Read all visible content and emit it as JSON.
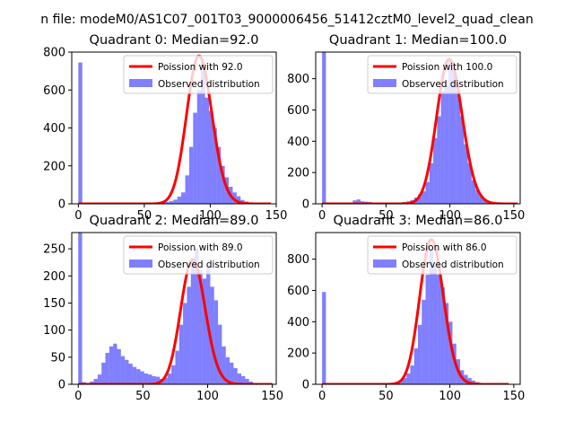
{
  "figure": {
    "suptitle": "n file: modeM0/AS1C07_001T03_9000006456_51412cztM0_level2_quad_clean"
  },
  "colors": {
    "hist_fill": "#0000ff",
    "hist_alpha": 0.5,
    "poisson_line": "#ff0000",
    "axis": "#000000",
    "text": "#000000"
  },
  "chart_data": [
    {
      "type": "bar",
      "title": "Quadrant 0: Median=92.0",
      "legend": [
        "Poission with 92.0",
        "Observed distribution"
      ],
      "legend_position": "top-right",
      "grid": false,
      "xlim": [
        -5,
        150
      ],
      "ylim": [
        0,
        800
      ],
      "xticks": [
        0,
        50,
        100,
        150
      ],
      "xtick_labels": [
        "0",
        "50",
        "100",
        "150"
      ],
      "yticks": [
        0,
        200,
        400,
        600,
        800
      ],
      "ytick_labels": [
        "0",
        "200",
        "400",
        "600",
        "800"
      ],
      "bin_width": 3,
      "bins": [
        [
          0,
          745
        ],
        [
          27,
          6
        ],
        [
          30,
          7
        ],
        [
          33,
          5
        ],
        [
          57,
          5
        ],
        [
          60,
          6
        ],
        [
          63,
          8
        ],
        [
          66,
          10
        ],
        [
          69,
          14
        ],
        [
          72,
          22
        ],
        [
          75,
          38
        ],
        [
          78,
          60
        ],
        [
          81,
          150
        ],
        [
          84,
          300
        ],
        [
          87,
          480
        ],
        [
          90,
          600
        ],
        [
          93,
          740
        ],
        [
          96,
          560
        ],
        [
          99,
          490
        ],
        [
          102,
          400
        ],
        [
          105,
          300
        ],
        [
          108,
          200
        ],
        [
          111,
          140
        ],
        [
          114,
          90
        ],
        [
          117,
          60
        ],
        [
          120,
          40
        ],
        [
          123,
          20
        ],
        [
          126,
          12
        ],
        [
          129,
          6
        ]
      ],
      "poisson_mean": 92.0,
      "poisson_peak": 780,
      "poisson_xrange": [
        0,
        146
      ]
    },
    {
      "type": "bar",
      "title": "Quadrant 1: Median=100.0",
      "legend": [
        "Poission with 100.0",
        "Observed distribution"
      ],
      "legend_position": "top-right",
      "grid": false,
      "xlim": [
        -5,
        155
      ],
      "ylim": [
        0,
        970
      ],
      "xticks": [
        0,
        50,
        100,
        150
      ],
      "xtick_labels": [
        "0",
        "50",
        "100",
        "150"
      ],
      "yticks": [
        0,
        200,
        400,
        600,
        800
      ],
      "ytick_labels": [
        "0",
        "200",
        "400",
        "600",
        "800"
      ],
      "bin_width": 3,
      "bins": [
        [
          0,
          970
        ],
        [
          21,
          8
        ],
        [
          24,
          22
        ],
        [
          27,
          28
        ],
        [
          30,
          16
        ],
        [
          33,
          14
        ],
        [
          36,
          12
        ],
        [
          39,
          8
        ],
        [
          57,
          6
        ],
        [
          60,
          8
        ],
        [
          63,
          12
        ],
        [
          66,
          16
        ],
        [
          69,
          24
        ],
        [
          72,
          40
        ],
        [
          75,
          60
        ],
        [
          78,
          80
        ],
        [
          81,
          140
        ],
        [
          84,
          260
        ],
        [
          87,
          420
        ],
        [
          90,
          560
        ],
        [
          93,
          720
        ],
        [
          96,
          760
        ],
        [
          99,
          920
        ],
        [
          102,
          860
        ],
        [
          105,
          720
        ],
        [
          108,
          560
        ],
        [
          111,
          380
        ],
        [
          114,
          260
        ],
        [
          117,
          150
        ],
        [
          120,
          90
        ],
        [
          123,
          50
        ],
        [
          126,
          30
        ],
        [
          129,
          14
        ],
        [
          132,
          6
        ]
      ],
      "poisson_mean": 100.0,
      "poisson_peak": 925,
      "poisson_xrange": [
        0,
        153
      ]
    },
    {
      "type": "bar",
      "title": "Quadrant 2: Median=89.0",
      "legend": [
        "Poission with 89.0",
        "Observed distribution"
      ],
      "legend_position": "top-right",
      "grid": false,
      "xlim": [
        -5,
        153
      ],
      "ylim": [
        0,
        280
      ],
      "xticks": [
        0,
        50,
        100,
        150
      ],
      "xtick_labels": [
        "0",
        "50",
        "100",
        "150"
      ],
      "yticks": [
        0,
        50,
        100,
        150,
        200,
        250
      ],
      "ytick_labels": [
        "0",
        "50",
        "100",
        "150",
        "200",
        "250"
      ],
      "bin_width": 3,
      "bins": [
        [
          0,
          280
        ],
        [
          3,
          4
        ],
        [
          9,
          5
        ],
        [
          12,
          10
        ],
        [
          15,
          18
        ],
        [
          18,
          40
        ],
        [
          21,
          58
        ],
        [
          24,
          70
        ],
        [
          27,
          75
        ],
        [
          30,
          65
        ],
        [
          33,
          52
        ],
        [
          36,
          45
        ],
        [
          39,
          38
        ],
        [
          42,
          32
        ],
        [
          45,
          28
        ],
        [
          48,
          24
        ],
        [
          51,
          20
        ],
        [
          54,
          18
        ],
        [
          57,
          15
        ],
        [
          60,
          14
        ],
        [
          63,
          10
        ],
        [
          66,
          12
        ],
        [
          69,
          20
        ],
        [
          72,
          35
        ],
        [
          75,
          62
        ],
        [
          78,
          110
        ],
        [
          81,
          150
        ],
        [
          84,
          180
        ],
        [
          87,
          230
        ],
        [
          90,
          250
        ],
        [
          93,
          210
        ],
        [
          96,
          195
        ],
        [
          99,
          220
        ],
        [
          102,
          180
        ],
        [
          105,
          155
        ],
        [
          108,
          110
        ],
        [
          111,
          70
        ],
        [
          114,
          50
        ],
        [
          117,
          40
        ],
        [
          120,
          30
        ],
        [
          123,
          20
        ],
        [
          126,
          15
        ],
        [
          129,
          10
        ],
        [
          132,
          5
        ]
      ],
      "poisson_mean": 89.0,
      "poisson_peak": 230,
      "poisson_xrange": [
        0,
        150
      ]
    },
    {
      "type": "bar",
      "title": "Quadrant 3: Median=86.0",
      "legend": [
        "Poission with 86.0",
        "Observed distribution"
      ],
      "legend_position": "top-right",
      "grid": false,
      "xlim": [
        -5,
        155
      ],
      "ylim": [
        0,
        970
      ],
      "xticks": [
        0,
        50,
        100,
        150
      ],
      "xtick_labels": [
        "0",
        "50",
        "100",
        "150"
      ],
      "yticks": [
        0,
        200,
        400,
        600,
        800
      ],
      "ytick_labels": [
        "0",
        "200",
        "400",
        "600",
        "800"
      ],
      "bin_width": 3,
      "bins": [
        [
          0,
          590
        ],
        [
          51,
          5
        ],
        [
          54,
          10
        ],
        [
          57,
          16
        ],
        [
          60,
          24
        ],
        [
          63,
          40
        ],
        [
          66,
          70
        ],
        [
          69,
          120
        ],
        [
          72,
          230
        ],
        [
          75,
          380
        ],
        [
          78,
          540
        ],
        [
          81,
          700
        ],
        [
          84,
          860
        ],
        [
          87,
          760
        ],
        [
          90,
          700
        ],
        [
          93,
          620
        ],
        [
          96,
          520
        ],
        [
          99,
          400
        ],
        [
          102,
          260
        ],
        [
          105,
          160
        ],
        [
          108,
          90
        ],
        [
          111,
          60
        ],
        [
          114,
          40
        ],
        [
          117,
          24
        ],
        [
          120,
          14
        ],
        [
          123,
          8
        ],
        [
          126,
          4
        ]
      ],
      "poisson_mean": 86.0,
      "poisson_peak": 925,
      "poisson_xrange": [
        0,
        146
      ]
    }
  ]
}
